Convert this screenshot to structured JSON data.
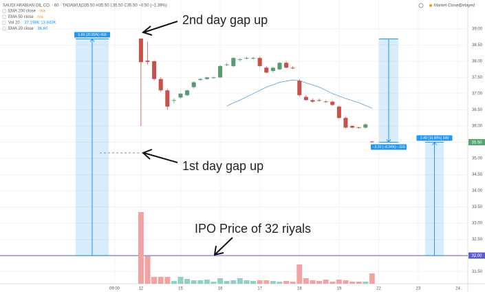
{
  "chart_data": {
    "type": "candlestick",
    "header": "SAUDI ARABIAN OIL CO. · 60 · TADAWUL",
    "ohlc_text": "O35.50 H35.50 L35.50 C35.50 −0.50 (−1.39%)",
    "legend": [
      {
        "name": "EMA 200 close",
        "value": "n/a"
      },
      {
        "name": "EMA 50 close",
        "value": "n/a"
      },
      {
        "name": "Vol 20",
        "value": "37.198K  13.843K"
      },
      {
        "name": "EMA 20 close",
        "value": "36.60"
      }
    ],
    "status": "Market Closed",
    "status_tag": "Delayed",
    "up_color": "#5a9a71",
    "down_color": "#c6504a",
    "volume_up_color": "#93cfc4",
    "volume_down_color": "#f1a3a3",
    "x": [
      0,
      1,
      2,
      3,
      4,
      5,
      6,
      7,
      8,
      9,
      10,
      11,
      12,
      13,
      14,
      15,
      16,
      17,
      18,
      19,
      20,
      21,
      22,
      23,
      24,
      25,
      26,
      27,
      28,
      29,
      30,
      31,
      32,
      33,
      34,
      35
    ],
    "open": [
      38.7,
      38.02,
      38.0,
      37.45,
      37.1,
      36.78,
      36.88,
      36.95,
      37.2,
      37.42,
      37.45,
      37.48,
      37.5,
      37.88,
      37.85,
      38.04,
      38.08,
      38.08,
      38.1,
      37.8,
      37.7,
      37.75,
      37.95,
      37.8,
      37.4,
      36.9,
      36.8,
      36.8,
      36.76,
      36.75,
      36.6,
      36.25,
      36.0,
      35.96,
      35.95,
      35.52
    ],
    "high": [
      38.7,
      38.6,
      38.02,
      37.5,
      37.15,
      36.85,
      37.02,
      37.12,
      37.38,
      37.48,
      37.52,
      37.52,
      37.88,
      37.95,
      38.12,
      38.1,
      38.14,
      38.14,
      38.14,
      37.85,
      37.82,
      37.98,
      38.0,
      37.85,
      37.45,
      36.95,
      36.85,
      36.85,
      36.8,
      36.78,
      36.62,
      36.28,
      36.02,
      35.98,
      36.08,
      35.54
    ],
    "low": [
      36.0,
      37.9,
      37.4,
      37.05,
      36.5,
      36.7,
      36.85,
      36.92,
      37.15,
      37.4,
      37.42,
      37.46,
      37.48,
      37.85,
      37.82,
      38.0,
      38.05,
      38.05,
      37.82,
      37.62,
      37.65,
      37.72,
      37.78,
      37.75,
      36.92,
      36.78,
      36.72,
      36.74,
      36.72,
      36.62,
      36.22,
      35.92,
      35.92,
      35.92,
      35.92,
      35.48
    ],
    "close": [
      37.97,
      37.98,
      37.45,
      37.1,
      36.6,
      36.8,
      37.0,
      37.1,
      37.35,
      37.45,
      37.5,
      37.5,
      37.85,
      37.9,
      38.1,
      38.06,
      38.1,
      38.1,
      37.85,
      37.65,
      37.8,
      37.95,
      37.8,
      37.78,
      36.95,
      36.8,
      36.75,
      36.78,
      36.75,
      36.65,
      36.25,
      35.95,
      35.95,
      35.95,
      36.05,
      35.5
    ],
    "volume": [
      208,
      80,
      20,
      20,
      20,
      8,
      20,
      14,
      10,
      10,
      12,
      6,
      16,
      8,
      10,
      16,
      10,
      8,
      10,
      10,
      8,
      6,
      8,
      6,
      56,
      16,
      10,
      8,
      12,
      6,
      12,
      10,
      6,
      6,
      6,
      30
    ],
    "volume_ylim": [
      0,
      250
    ],
    "ema_name": "EMA 20",
    "ema_color": "#5b9bd5",
    "ema_x": [
      13,
      15,
      17,
      19,
      21,
      23,
      24,
      25,
      27,
      29,
      31,
      33,
      35
    ],
    "ema_values": [
      36.62,
      36.8,
      37.0,
      37.2,
      37.35,
      37.42,
      37.4,
      37.33,
      37.2,
      37.0,
      36.85,
      36.72,
      36.55
    ],
    "xlim": [
      -21.35,
      49.5
    ],
    "xticks": [
      {
        "value": -4,
        "label": "09:00"
      },
      {
        "value": 0,
        "label": "12"
      },
      {
        "value": 6,
        "label": "15"
      },
      {
        "value": 12,
        "label": "16"
      },
      {
        "value": 18,
        "label": "17"
      },
      {
        "value": 24,
        "label": "18"
      },
      {
        "value": 30,
        "label": "19"
      },
      {
        "value": 36,
        "label": "22"
      },
      {
        "value": 42,
        "label": "23"
      },
      {
        "value": 48,
        "label": "24"
      }
    ],
    "ylim": [
      31.13,
      39.89
    ],
    "yticks": [
      {
        "value": 31.5,
        "label": "31.50"
      },
      {
        "value": 32,
        "label": "32.00"
      },
      {
        "value": 32.5,
        "label": "32.50"
      },
      {
        "value": 33,
        "label": "33.00"
      },
      {
        "value": 33.5,
        "label": "33.50"
      },
      {
        "value": 34,
        "label": "34.00"
      },
      {
        "value": 34.5,
        "label": "34.50"
      },
      {
        "value": 35,
        "label": "35.00"
      },
      {
        "value": 35.5,
        "label": "35.50"
      },
      {
        "value": 36,
        "label": "36.00"
      },
      {
        "value": 36.5,
        "label": "36.50"
      },
      {
        "value": 37,
        "label": "37.00"
      },
      {
        "value": 37.5,
        "label": "37.50"
      },
      {
        "value": 38,
        "label": "38.00"
      },
      {
        "value": 38.5,
        "label": "38.50"
      },
      {
        "value": 39,
        "label": "39.00"
      }
    ],
    "last_price": {
      "value": 35.5,
      "label": "35.50"
    },
    "ipo_price": {
      "value": 32,
      "label": "32.00"
    },
    "measures": [
      {
        "label": "6.69 (20.89%) 669",
        "from": 32.0,
        "to": 38.69
      },
      {
        "label": "−3.19 (−8.24%) −319",
        "from": 38.69,
        "to": 35.5
      },
      {
        "label": "3.49 (10.90%) 349",
        "from": 32.0,
        "to": 35.5
      }
    ],
    "annotations": [
      "2nd day gap up",
      "1st day gap up",
      "IPO Price of 32 riyals"
    ]
  }
}
